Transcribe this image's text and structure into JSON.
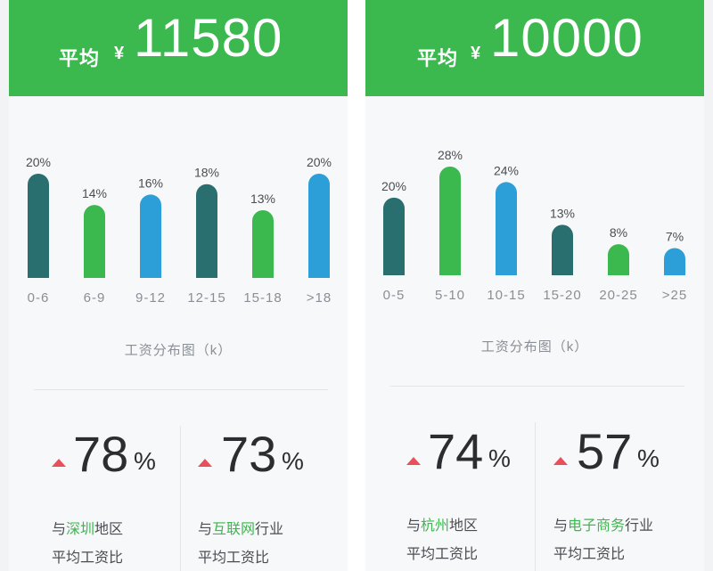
{
  "colors": {
    "header": "#3bb84e",
    "teal": "#2a6f6f",
    "green": "#3bb84e",
    "blue": "#2c9fd8",
    "up": "#e8505b",
    "highlight": "#3bb84e"
  },
  "cards": [
    {
      "avg_label": "平均",
      "currency": "¥",
      "avg_value": "11580",
      "axis_caption": "工资分布图（k）",
      "stats": [
        {
          "value": "78",
          "unit": "%",
          "prefix": "与",
          "highlight": "深圳",
          "suffix": "地区",
          "line2": "平均工资比",
          "direction": "up"
        },
        {
          "value": "73",
          "unit": "%",
          "prefix": "与",
          "highlight": "互联网",
          "suffix": "行业",
          "line2": "平均工资比",
          "direction": "up"
        }
      ]
    },
    {
      "avg_label": "平均",
      "currency": "¥",
      "avg_value": "10000",
      "axis_caption": "工资分布图（k）",
      "stats": [
        {
          "value": "74",
          "unit": "%",
          "prefix": "与",
          "highlight": "杭州",
          "suffix": "地区",
          "line2": "平均工资比",
          "direction": "up"
        },
        {
          "value": "57",
          "unit": "%",
          "prefix": "与",
          "highlight": "电子商务",
          "suffix": "行业",
          "line2": "平均工资比",
          "direction": "up"
        }
      ]
    }
  ],
  "chart_data": [
    {
      "type": "bar",
      "title": "",
      "xlabel": "工资分布图（k）",
      "ylabel": "",
      "categories": [
        "0-6",
        "6-9",
        "9-12",
        "12-15",
        "15-18",
        ">18"
      ],
      "values": [
        20,
        14,
        16,
        18,
        13,
        20
      ],
      "data_labels": [
        "20%",
        "14%",
        "16%",
        "18%",
        "13%",
        "20%"
      ],
      "bar_colors": [
        "#2a6f6f",
        "#3bb84e",
        "#2c9fd8",
        "#2a6f6f",
        "#3bb84e",
        "#2c9fd8"
      ],
      "ylim": [
        0,
        20
      ],
      "grid": false
    },
    {
      "type": "bar",
      "title": "",
      "xlabel": "工资分布图（k）",
      "ylabel": "",
      "categories": [
        "0-5",
        "5-10",
        "10-15",
        "15-20",
        "20-25",
        ">25"
      ],
      "values": [
        20,
        28,
        24,
        13,
        8,
        7
      ],
      "data_labels": [
        "20%",
        "28%",
        "24%",
        "13%",
        "8%",
        "7%"
      ],
      "bar_colors": [
        "#2a6f6f",
        "#3bb84e",
        "#2c9fd8",
        "#2a6f6f",
        "#3bb84e",
        "#2c9fd8"
      ],
      "ylim": [
        0,
        28
      ],
      "grid": false
    }
  ]
}
